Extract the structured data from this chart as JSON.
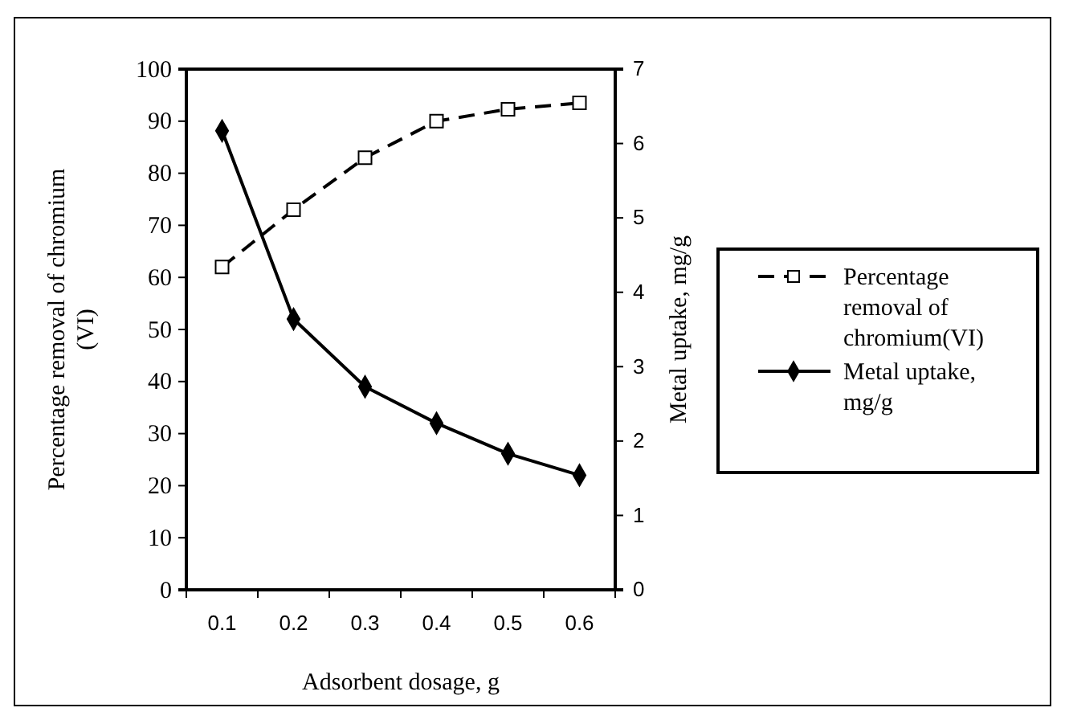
{
  "chart_data": {
    "type": "line",
    "xlabel": "Adsorbent dosage, g",
    "ylabel": "Percentage removal of chromium (VI)",
    "y2label": "Metal uptake, mg/g",
    "categories": [
      "0.1",
      "0.2",
      "0.3",
      "0.4",
      "0.5",
      "0.6"
    ],
    "series": [
      {
        "name": "Percentage removal of chromium(VI)",
        "color": "#000000",
        "values": [
          62,
          73,
          83,
          90,
          92.3,
          93.5
        ],
        "marker": "square",
        "line_style": "dashed"
      },
      {
        "name": "Metal uptake, mg/g",
        "color": "#000000",
        "values": [
          6.17,
          3.64,
          2.73,
          2.24,
          1.83,
          1.54
        ],
        "marker": "diamond",
        "line_style": "solid",
        "axis": "y2"
      }
    ],
    "ylim": [
      0,
      100
    ],
    "yticks": [
      0,
      10,
      20,
      30,
      40,
      50,
      60,
      70,
      80,
      90,
      100
    ],
    "y2lim": [
      0,
      7
    ],
    "y2ticks": [
      0,
      1,
      2,
      3,
      4,
      5,
      6,
      7
    ],
    "grid": false,
    "legend": "right"
  }
}
